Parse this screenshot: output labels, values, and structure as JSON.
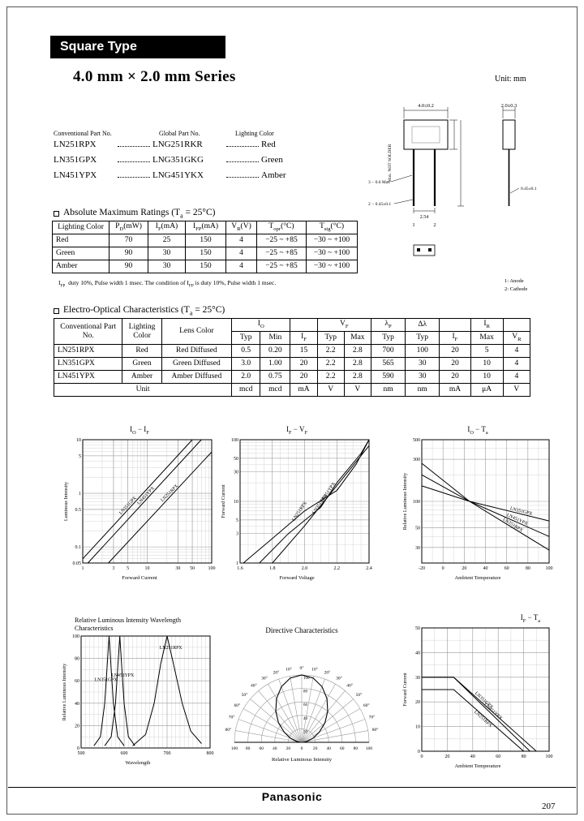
{
  "page": {
    "header_title": "Square Type",
    "series_title": "4.0 mm × 2.0 mm Series",
    "unit_note": "Unit: mm",
    "footer_brand": "Panasonic",
    "page_number": "207"
  },
  "part_list": {
    "headers": [
      "Conventional Part No.",
      "Global Part No.",
      "Lighting Color"
    ],
    "rows": [
      [
        "LN251RPX",
        "LNG251RKR",
        "Red"
      ],
      [
        "LN351GPX",
        "LNG351GKG",
        "Green"
      ],
      [
        "LN451YPX",
        "LNG451YKX",
        "Amber"
      ]
    ]
  },
  "drawing": {
    "labels": {
      "width_front": "4.0±0.2",
      "width_side": "2.0±0.3",
      "no_solder": "Max. NOT SOLDER",
      "lead_thickness": "3 − 0.6 Max",
      "lead_width": "2 − 0.45±0.1",
      "lead_width_side": "0.45±0.1",
      "pitch": "2.54",
      "pin1": "1",
      "pin2": "2",
      "anode": "1: Anode",
      "cathode": "2: Cathode"
    }
  },
  "abs_max": {
    "title": "Absolute Maximum Ratings (T_{a} = 25°C)",
    "headers": [
      "Lighting Color",
      "P_{D}(mW)",
      "I_{F}(mA)",
      "I_{FP}(mA)",
      "V_{R}(V)",
      "T_{opr}(°C)",
      "T_{stg}(°C)"
    ],
    "rows": [
      [
        "Red",
        "70",
        "25",
        "150",
        "4",
        "−25 ~ +85",
        "−30 ~ +100"
      ],
      [
        "Green",
        "90",
        "30",
        "150",
        "4",
        "−25 ~ +85",
        "−30 ~ +100"
      ],
      [
        "Amber",
        "90",
        "30",
        "150",
        "4",
        "−25 ~ +85",
        "−30 ~ +100"
      ]
    ],
    "footnote_term": "I_{FP}",
    "footnote_text": "duty 10%, Pulse width 1 msec.  The condition of I_{FP} is duty 10%, Pulse width 1 msec."
  },
  "eo": {
    "title": "Electro-Optical Characteristics (T_{a} = 25°C)",
    "header_row1": [
      {
        "label": "Conventional Part No.",
        "rowspan": 2
      },
      {
        "label": "Lighting Color",
        "rowspan": 2
      },
      {
        "label": "Lens Color",
        "rowspan": 2
      },
      {
        "label": "I_{O}",
        "colspan": 2
      },
      {
        "label": ""
      },
      {
        "label": "V_{F}",
        "colspan": 2
      },
      {
        "label": "λ_{P}"
      },
      {
        "label": "Δλ"
      },
      {
        "label": ""
      },
      {
        "label": "I_{R}"
      },
      {
        "label": ""
      }
    ],
    "header_row2": [
      "Typ",
      "Min",
      "I_{F}",
      "Typ",
      "Max",
      "Typ",
      "Typ",
      "I_{F}",
      "Max",
      "V_{R}"
    ],
    "rows": [
      [
        "LN251RPX",
        "Red",
        "Red Diffused",
        "0.5",
        "0.20",
        "15",
        "2.2",
        "2.8",
        "700",
        "100",
        "20",
        "5",
        "4"
      ],
      [
        "LN351GPX",
        "Green",
        "Green Diffused",
        "3.0",
        "1.00",
        "20",
        "2.2",
        "2.8",
        "565",
        "30",
        "20",
        "10",
        "4"
      ],
      [
        "LN451YPX",
        "Amber",
        "Amber Diffused",
        "2.0",
        "0.75",
        "20",
        "2.2",
        "2.8",
        "590",
        "30",
        "20",
        "10",
        "4"
      ]
    ],
    "unit_row": {
      "label": "Unit",
      "units": [
        "mcd",
        "mcd",
        "mA",
        "V",
        "V",
        "nm",
        "nm",
        "mA",
        "μA",
        "V"
      ]
    }
  },
  "chart_data": [
    {
      "id": "io_if",
      "type": "line",
      "title": "I_{O} − I_{F}",
      "xlabel": "Forward Current",
      "ylabel": "Luminous Intensity",
      "xscale": "log",
      "yscale": "log",
      "xlim": [
        1,
        100
      ],
      "ylim": [
        0.05,
        10
      ],
      "xticks": [
        1,
        3,
        5,
        10,
        30,
        50,
        100
      ],
      "yticks": [
        0.05,
        0.1,
        0.5,
        1,
        5,
        10
      ],
      "series": [
        {
          "name": "LN351GPX",
          "points": [
            [
              1,
              0.06
            ],
            [
              50,
              10
            ]
          ],
          "label_frac": 0.42,
          "label_rot": -47,
          "label_dy": -3
        },
        {
          "name": "LN451YPX",
          "points": [
            [
              1.2,
              0.05
            ],
            [
              69,
              10
            ]
          ],
          "label_frac": 0.52,
          "label_rot": -47,
          "label_dy": -3
        },
        {
          "name": "LN251RPX",
          "points": [
            [
              2.5,
              0.05
            ],
            [
              100,
              5.9
            ]
          ],
          "label_frac": 0.6,
          "label_rot": -45,
          "label_dy": -3
        }
      ]
    },
    {
      "id": "if_vf",
      "type": "line",
      "title": "I_{F} − V_{F}",
      "xlabel": "Forward Voltage",
      "ylabel": "Forward Current",
      "xscale": "linear",
      "yscale": "log",
      "xlim": [
        1.6,
        2.4
      ],
      "ylim": [
        1,
        100
      ],
      "xticks": [
        1.6,
        1.8,
        2.0,
        2.2,
        2.4
      ],
      "xtick_labels": [
        "1.6",
        "1.8",
        "2.0",
        "2.2",
        "2.4"
      ],
      "x_minor": 4,
      "yticks": [
        1,
        3,
        5,
        10,
        30,
        50,
        100
      ],
      "series": [
        {
          "name": "LN251RPX",
          "points": [
            [
              1.62,
              1
            ],
            [
              1.8,
              2.5
            ],
            [
              2.0,
              7
            ],
            [
              2.2,
              15
            ],
            [
              2.32,
              40
            ],
            [
              2.4,
              100
            ]
          ],
          "label_frac": 0.42,
          "label_rot": -56,
          "label_dy": -3
        },
        {
          "name": "LN351GPX",
          "points": [
            [
              1.72,
              1
            ],
            [
              1.9,
              3
            ],
            [
              2.1,
              8
            ],
            [
              2.2,
              20
            ],
            [
              2.35,
              60
            ],
            [
              2.4,
              100
            ]
          ],
          "label_frac": 0.5,
          "label_rot": -56,
          "label_dy": -3
        },
        {
          "name": "LN451YPX",
          "points": [
            [
              1.8,
              1
            ],
            [
              2.0,
              4
            ],
            [
              2.2,
              18
            ],
            [
              2.4,
              80
            ]
          ],
          "label_frac": 0.58,
          "label_rot": -56,
          "label_dy": -3
        }
      ]
    },
    {
      "id": "io_ta",
      "type": "line",
      "title": "I_{O} − T_{a}",
      "xlabel": "Ambient Temperature",
      "ylabel": "Relative Luminous Intensity",
      "xscale": "linear",
      "yscale": "log",
      "xlim": [
        -20,
        100
      ],
      "ylim": [
        20,
        500
      ],
      "xticks": [
        -20,
        0,
        20,
        40,
        60,
        80,
        100
      ],
      "x_minor": 2,
      "yticks": [
        30,
        50,
        100,
        300,
        500
      ],
      "series": [
        {
          "name": "LN251RPX",
          "points": [
            [
              -20,
              270
            ],
            [
              25,
              100
            ],
            [
              100,
              28
            ]
          ],
          "label_frac": 0.72,
          "label_rot": 32,
          "label_dy": -2
        },
        {
          "name": "LN451YPX",
          "points": [
            [
              -20,
              200
            ],
            [
              25,
              100
            ],
            [
              100,
              40
            ]
          ],
          "label_frac": 0.75,
          "label_rot": 25,
          "label_dy": -2
        },
        {
          "name": "LN351GPX",
          "points": [
            [
              -20,
              150
            ],
            [
              25,
              100
            ],
            [
              100,
              60
            ]
          ],
          "label_frac": 0.78,
          "label_rot": 14,
          "label_dy": -2
        }
      ]
    },
    {
      "id": "wavelength",
      "type": "line",
      "title": "Relative Luminous Intensity Wavelength Characteristics",
      "xlabel": "Wavelength",
      "ylabel": "Relative Luminous Intensity",
      "xscale": "linear",
      "yscale": "linear",
      "xlim": [
        500,
        800
      ],
      "ylim": [
        0,
        100
      ],
      "xticks": [
        500,
        600,
        700,
        800
      ],
      "x_minor": 10,
      "yticks": [
        0,
        20,
        40,
        60,
        80,
        100
      ],
      "y_minor": 2,
      "series": [
        {
          "name": "LN351GPX",
          "points": [
            [
              530,
              2
            ],
            [
              545,
              10
            ],
            [
              555,
              40
            ],
            [
              560,
              70
            ],
            [
              565,
              100
            ],
            [
              570,
              70
            ],
            [
              575,
              40
            ],
            [
              585,
              10
            ],
            [
              600,
              2
            ]
          ],
          "label_frac": 0.28,
          "label_rot": 0,
          "label_dy": -5
        },
        {
          "name": "LN451YPX",
          "points": [
            [
              555,
              2
            ],
            [
              570,
              10
            ],
            [
              580,
              40
            ],
            [
              585,
              70
            ],
            [
              590,
              100
            ],
            [
              595,
              70
            ],
            [
              600,
              40
            ],
            [
              610,
              10
            ],
            [
              625,
              2
            ]
          ],
          "label_frac": 0.7,
          "label_rot": 0,
          "label_dy": -5
        },
        {
          "name": "LN251RPX",
          "points": [
            [
              620,
              2
            ],
            [
              650,
              12
            ],
            [
              670,
              40
            ],
            [
              685,
              75
            ],
            [
              700,
              100
            ],
            [
              715,
              75
            ],
            [
              735,
              40
            ],
            [
              755,
              15
            ],
            [
              780,
              4
            ]
          ],
          "label_frac": 0.58,
          "label_rot": 0,
          "label_dy": -4
        }
      ]
    },
    {
      "id": "directive",
      "type": "polar",
      "title": "Directive Characteristics",
      "xlabel": "Relative Luminous Intensity",
      "angle_ticks": [
        0,
        10,
        20,
        30,
        40,
        50,
        60,
        70,
        80,
        90
      ],
      "radial_ticks": [
        20,
        40,
        60,
        80,
        100
      ],
      "scale_labels": [
        "100",
        "80",
        "60",
        "40",
        "20",
        "0",
        "20",
        "40",
        "60",
        "80",
        "100"
      ],
      "lobe": [
        [
          -90,
          2
        ],
        [
          -80,
          8
        ],
        [
          -70,
          18
        ],
        [
          -60,
          30
        ],
        [
          -50,
          45
        ],
        [
          -40,
          60
        ],
        [
          -30,
          75
        ],
        [
          -20,
          88
        ],
        [
          -10,
          97
        ],
        [
          0,
          100
        ],
        [
          10,
          97
        ],
        [
          20,
          88
        ],
        [
          30,
          75
        ],
        [
          40,
          60
        ],
        [
          50,
          45
        ],
        [
          60,
          30
        ],
        [
          70,
          18
        ],
        [
          80,
          8
        ],
        [
          90,
          2
        ]
      ]
    },
    {
      "id": "if_ta",
      "type": "line",
      "title": "I_{F} − T_{a}",
      "xlabel": "Ambient Temperature",
      "ylabel": "Forward Current",
      "xscale": "linear",
      "yscale": "linear",
      "xlim": [
        0,
        100
      ],
      "ylim": [
        0,
        50
      ],
      "xticks": [
        0,
        20,
        40,
        60,
        80,
        100
      ],
      "x_minor": 2,
      "yticks": [
        0,
        10,
        20,
        30,
        40,
        50
      ],
      "y_minor": 2,
      "series": [
        {
          "name": "LN351GPX",
          "points": [
            [
              0,
              30
            ],
            [
              25,
              30
            ],
            [
              90,
              0
            ]
          ],
          "label_frac": 0.5,
          "label_rot": 42,
          "label_dy": -3
        },
        {
          "name": "LN451YPX",
          "points": [
            [
              0,
              30
            ],
            [
              25,
              30
            ],
            [
              85,
              0
            ]
          ],
          "label_frac": 0.62,
          "label_rot": 42,
          "label_dy": -3
        },
        {
          "name": "LN251RPX",
          "points": [
            [
              0,
              25
            ],
            [
              25,
              25
            ],
            [
              80,
              0
            ]
          ],
          "label_frac": 0.56,
          "label_rot": 42,
          "label_dy": 6
        }
      ]
    }
  ]
}
